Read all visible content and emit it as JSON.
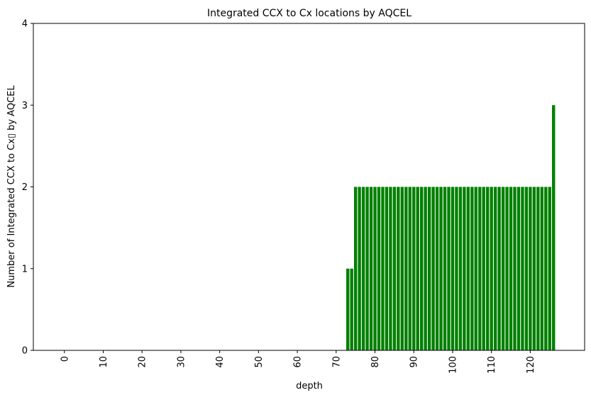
{
  "chart_data": {
    "type": "bar",
    "title": "Integrated CCX to Cx locations by AQCEL",
    "xlabel": "depth",
    "ylabel": "Number of Integrated CCX to Cx▯ by AQCEL",
    "xlim": [
      -8,
      134
    ],
    "ylim": [
      0,
      4
    ],
    "x_ticks": [
      0,
      10,
      20,
      30,
      40,
      50,
      60,
      70,
      80,
      90,
      100,
      110,
      120
    ],
    "y_ticks": [
      0,
      1,
      2,
      3,
      4
    ],
    "grid": false,
    "bar_color": "#008000",
    "x": [
      73,
      74,
      75,
      76,
      77,
      78,
      79,
      80,
      81,
      82,
      83,
      84,
      85,
      86,
      87,
      88,
      89,
      90,
      91,
      92,
      93,
      94,
      95,
      96,
      97,
      98,
      99,
      100,
      101,
      102,
      103,
      104,
      105,
      106,
      107,
      108,
      109,
      110,
      111,
      112,
      113,
      114,
      115,
      116,
      117,
      118,
      119,
      120,
      121,
      122,
      123,
      124,
      125,
      126
    ],
    "values": [
      1,
      1,
      2,
      2,
      2,
      2,
      2,
      2,
      2,
      2,
      2,
      2,
      2,
      2,
      2,
      2,
      2,
      2,
      2,
      2,
      2,
      2,
      2,
      2,
      2,
      2,
      2,
      2,
      2,
      2,
      2,
      2,
      2,
      2,
      2,
      2,
      2,
      2,
      2,
      2,
      2,
      2,
      2,
      2,
      2,
      2,
      2,
      2,
      2,
      2,
      2,
      2,
      2,
      3
    ]
  }
}
